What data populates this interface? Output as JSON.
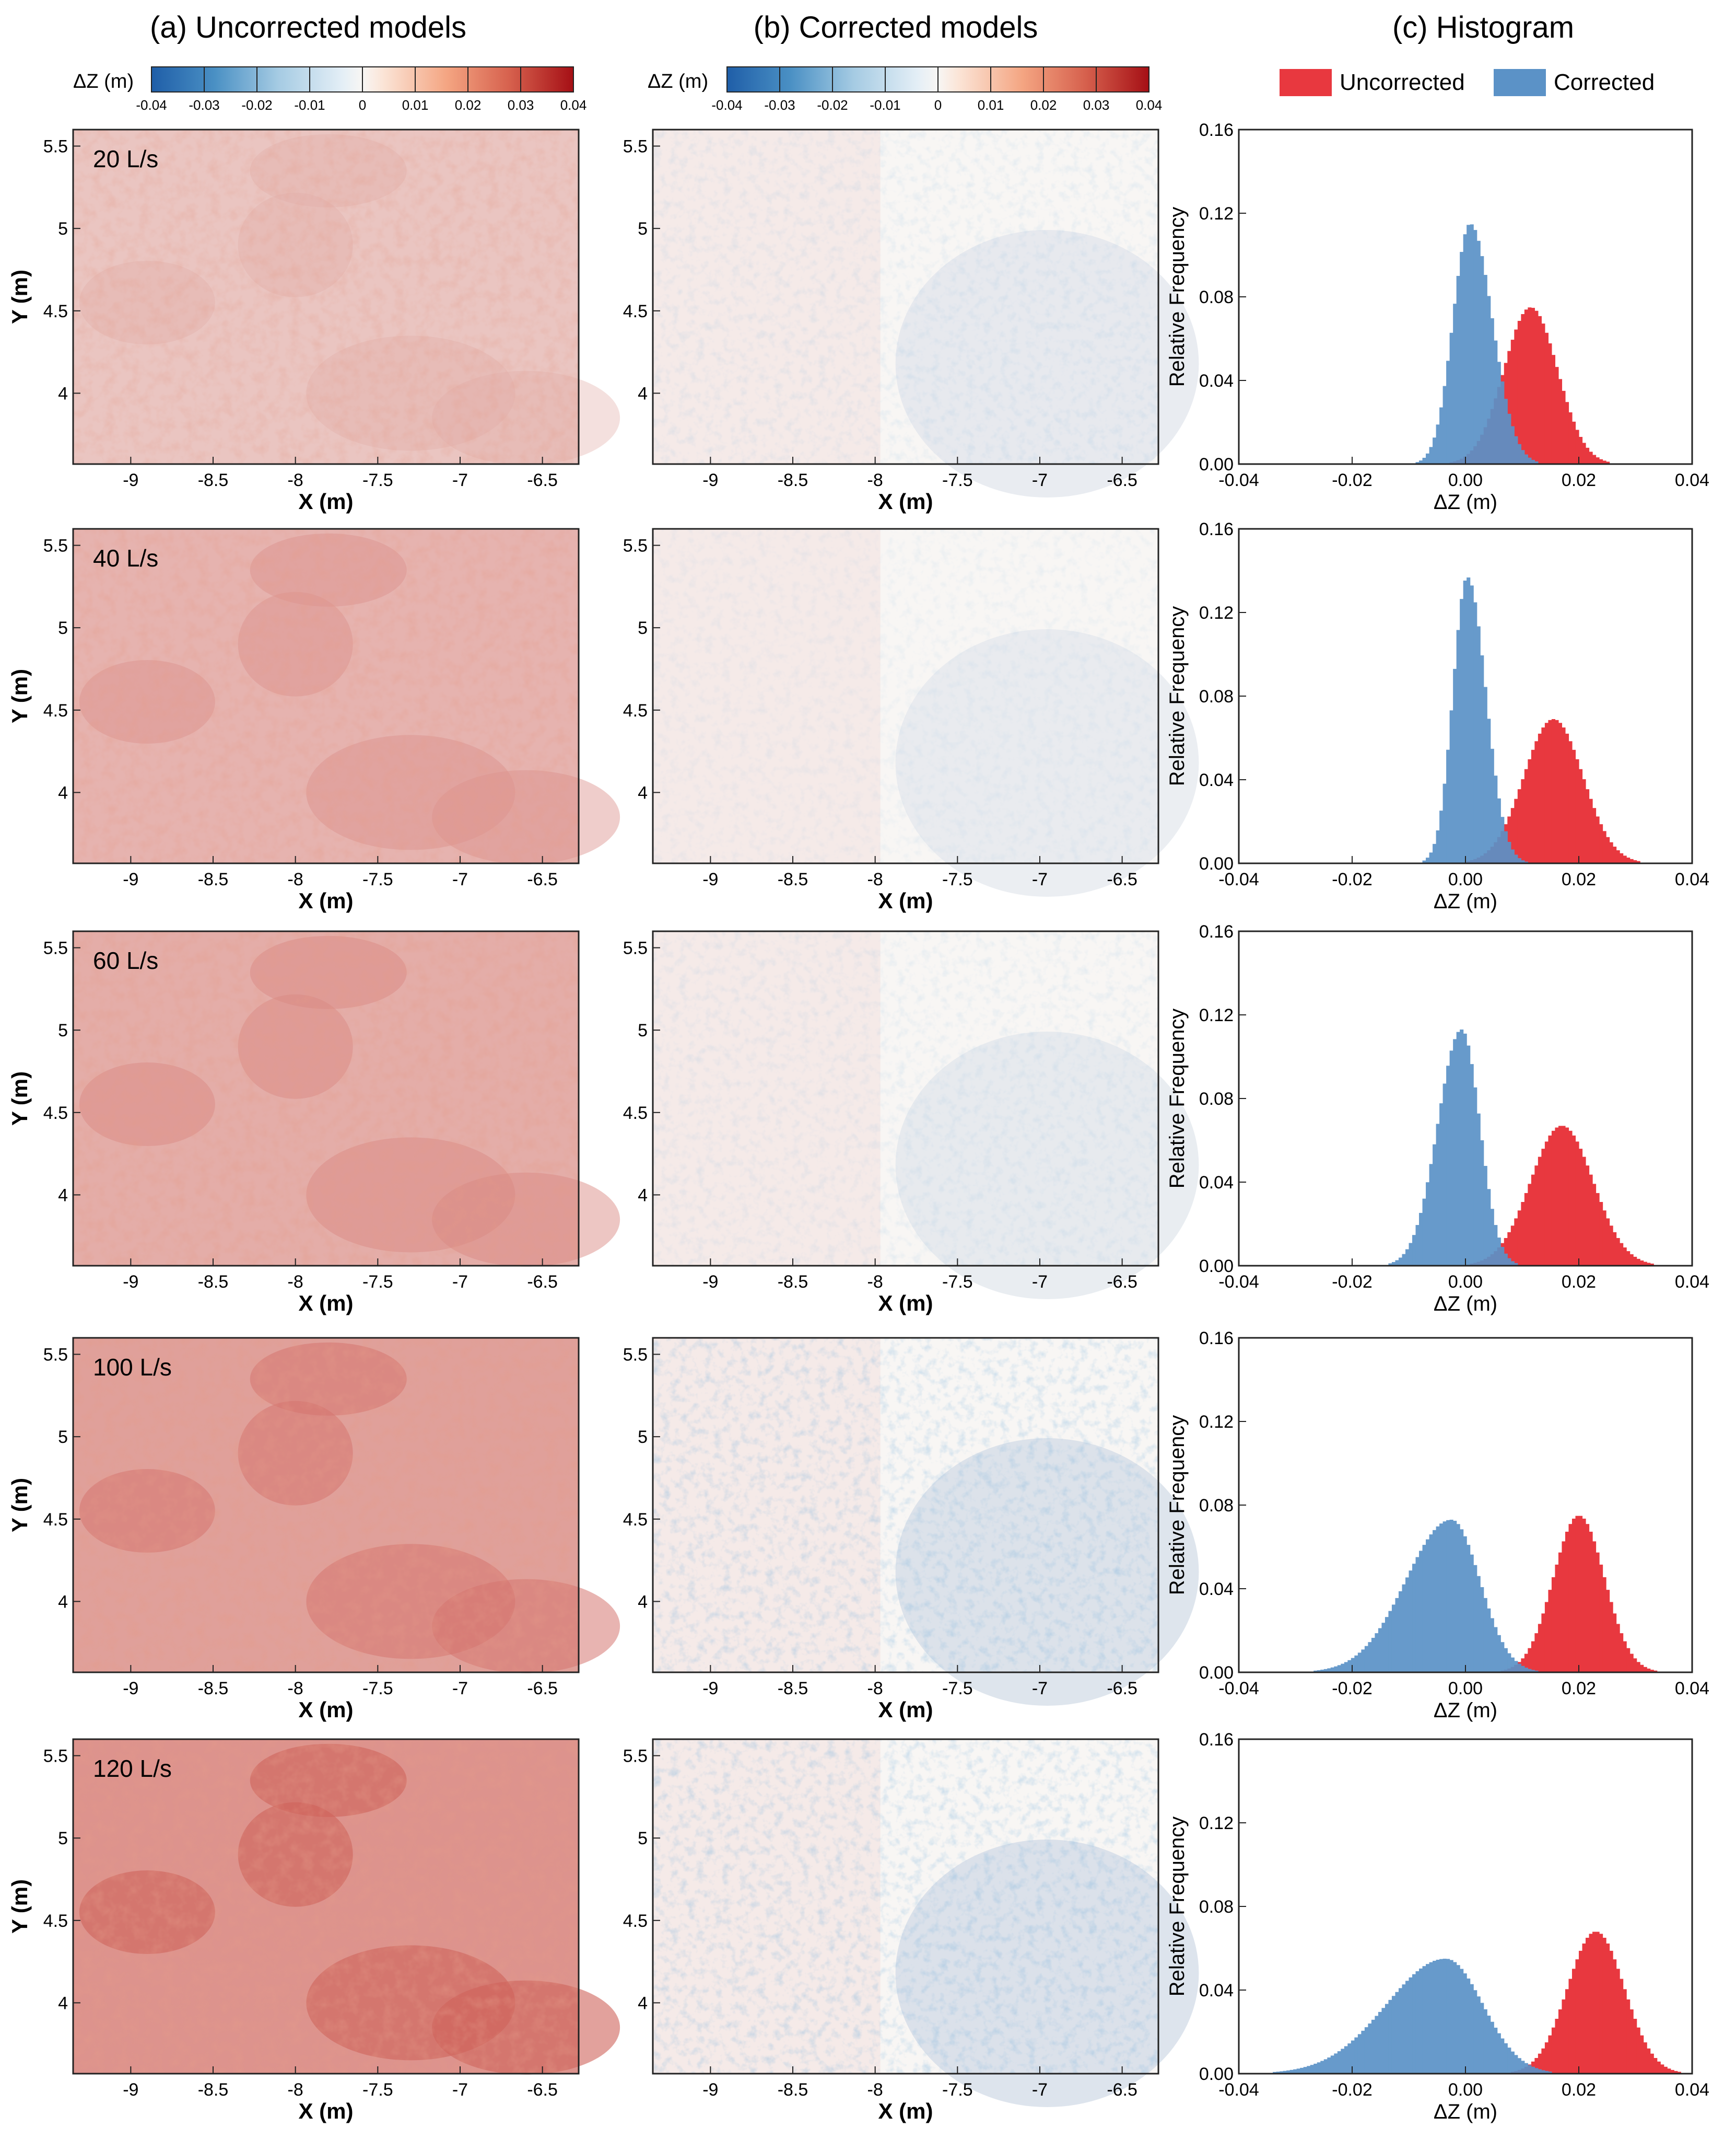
{
  "columns": {
    "a_title": "(a) Uncorrected models",
    "b_title": "(b) Corrected models",
    "c_title": "(c) Histogram"
  },
  "colorbar": {
    "label": "ΔZ (m)",
    "min": -0.04,
    "max": 0.04,
    "tick_labels": [
      "-0.04",
      "-0.03",
      "-0.02",
      "-0.01",
      "0",
      "0.01",
      "0.02",
      "0.03",
      "0.04"
    ],
    "colormap": "blue-white-red (RdBu reversed)"
  },
  "legend": {
    "items": [
      {
        "label": "Uncorrected",
        "color": "#e8383f"
      },
      {
        "label": "Corrected",
        "color": "#5b92c7"
      }
    ],
    "placement": "top"
  },
  "maps": {
    "xlabel": "X (m)",
    "ylabel": "Y (m)",
    "x_ticks": [
      "-9",
      "-8.5",
      "-8",
      "-7.5",
      "-7",
      "-6.5"
    ],
    "y_ticks": [
      "5.5",
      "5",
      "4.5",
      "4"
    ],
    "xlim": [
      -9.35,
      -6.28
    ],
    "ylim": [
      3.57,
      5.6
    ]
  },
  "chart_data": [
    {
      "type": "bar",
      "panel": "histogram",
      "flow_label": "20 L/s",
      "xlabel": "ΔZ (m)",
      "ylabel": "Relative Frequency",
      "xlim": [
        -0.04,
        0.04
      ],
      "ylim": [
        0,
        0.16
      ],
      "x_ticks": [
        "-0.04",
        "-0.02",
        "0.00",
        "0.02",
        "0.04"
      ],
      "y_ticks": [
        "0.00",
        "0.04",
        "0.08",
        "0.12",
        "0.16"
      ],
      "series": [
        {
          "name": "Uncorrected",
          "peak_center": 0.0115,
          "peak_value": 0.075,
          "std": 0.0047,
          "skew": 0
        },
        {
          "name": "Corrected",
          "peak_center": 0.0008,
          "peak_value": 0.115,
          "std": 0.003,
          "skew": 0.3
        }
      ]
    },
    {
      "type": "bar",
      "panel": "histogram",
      "flow_label": "40 L/s",
      "xlabel": "ΔZ (m)",
      "ylabel": "Relative Frequency",
      "xlim": [
        -0.04,
        0.04
      ],
      "ylim": [
        0,
        0.16
      ],
      "x_ticks": [
        "-0.04",
        "-0.02",
        "0.00",
        "0.02",
        "0.04"
      ],
      "y_ticks": [
        "0.00",
        "0.04",
        "0.08",
        "0.12",
        "0.16"
      ],
      "series": [
        {
          "name": "Uncorrected",
          "peak_center": 0.0155,
          "peak_value": 0.069,
          "std": 0.0052,
          "skew": 0
        },
        {
          "name": "Corrected",
          "peak_center": 0.0003,
          "peak_value": 0.137,
          "std": 0.0025,
          "skew": 0.3
        }
      ]
    },
    {
      "type": "bar",
      "panel": "histogram",
      "flow_label": "60 L/s",
      "xlabel": "ΔZ (m)",
      "ylabel": "Relative Frequency",
      "xlim": [
        -0.04,
        0.04
      ],
      "ylim": [
        0,
        0.16
      ],
      "x_ticks": [
        "-0.04",
        "-0.02",
        "0.00",
        "0.02",
        "0.04"
      ],
      "y_ticks": [
        "0.00",
        "0.04",
        "0.08",
        "0.12",
        "0.16"
      ],
      "series": [
        {
          "name": "Uncorrected",
          "peak_center": 0.017,
          "peak_value": 0.067,
          "std": 0.0055,
          "skew": 0
        },
        {
          "name": "Corrected",
          "peak_center": -0.0007,
          "peak_value": 0.113,
          "std": 0.0032,
          "skew": -0.3
        }
      ]
    },
    {
      "type": "bar",
      "panel": "histogram",
      "flow_label": "100 L/s",
      "xlabel": "ΔZ (m)",
      "ylabel": "Relative Frequency",
      "xlim": [
        -0.04,
        0.04
      ],
      "ylim": [
        0,
        0.16
      ],
      "x_ticks": [
        "-0.04",
        "-0.02",
        "0.00",
        "0.02",
        "0.04"
      ],
      "y_ticks": [
        "0.00",
        "0.04",
        "0.08",
        "0.12",
        "0.16"
      ],
      "series": [
        {
          "name": "Uncorrected",
          "peak_center": 0.02,
          "peak_value": 0.075,
          "std": 0.0045,
          "skew": 0
        },
        {
          "name": "Corrected",
          "peak_center": -0.0025,
          "peak_value": 0.073,
          "std": 0.005,
          "skew": -0.6
        }
      ]
    },
    {
      "type": "bar",
      "panel": "histogram",
      "flow_label": "120 L/s",
      "xlabel": "ΔZ (m)",
      "ylabel": "Relative Frequency",
      "xlim": [
        -0.04,
        0.04
      ],
      "ylim": [
        0,
        0.16
      ],
      "x_ticks": [
        "-0.04",
        "-0.02",
        "0.00",
        "0.02",
        "0.04"
      ],
      "y_ticks": [
        "0.00",
        "0.04",
        "0.08",
        "0.12",
        "0.16"
      ],
      "series": [
        {
          "name": "Uncorrected",
          "peak_center": 0.023,
          "peak_value": 0.068,
          "std": 0.005,
          "skew": 0
        },
        {
          "name": "Corrected",
          "peak_center": -0.0035,
          "peak_value": 0.055,
          "std": 0.0065,
          "skew": -0.6
        }
      ]
    }
  ],
  "rows": [
    {
      "flow_label": "20 L/s",
      "uncorrected_mean": 0.0115,
      "corrected_mean": 0.0008
    },
    {
      "flow_label": "40 L/s",
      "uncorrected_mean": 0.0155,
      "corrected_mean": 0.0003
    },
    {
      "flow_label": "60 L/s",
      "uncorrected_mean": 0.017,
      "corrected_mean": -0.0007
    },
    {
      "flow_label": "100 L/s",
      "uncorrected_mean": 0.02,
      "corrected_mean": -0.0025
    },
    {
      "flow_label": "120 L/s",
      "uncorrected_mean": 0.023,
      "corrected_mean": -0.0035
    }
  ]
}
